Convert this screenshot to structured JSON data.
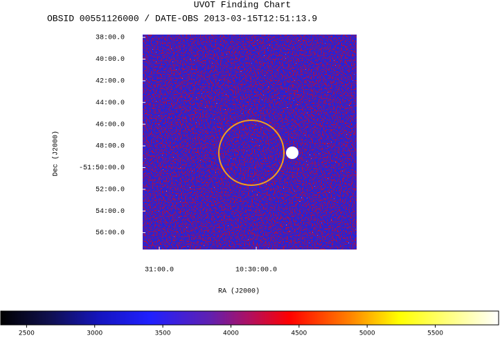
{
  "chart_data": {
    "type": "image",
    "title": "UVOT Finding Chart",
    "subtitle": "OBSID 00551126000 / DATE-OBS 2013-03-15T12:51:13.9",
    "xlabel": "RA (J2000)",
    "ylabel": "Dec (J2000)",
    "xlim": [
      157.7929,
      157.2411
    ],
    "xticks": [
      {
        "value": 157.75,
        "label": "31:00.0"
      },
      {
        "value": 157.5,
        "label": "10:30:00.0"
      }
    ],
    "ylim": [
      -51.9592,
      -51.629
    ],
    "yticks": [
      {
        "value": -51.6333,
        "label": "38:00.0"
      },
      {
        "value": -51.6667,
        "label": "40:00.0"
      },
      {
        "value": -51.7,
        "label": "42:00.0"
      },
      {
        "value": -51.7333,
        "label": "44:00.0"
      },
      {
        "value": -51.7667,
        "label": "46:00.0"
      },
      {
        "value": -51.8,
        "label": "48:00.0"
      },
      {
        "value": -51.8333,
        "label": "-51:50:00.0"
      },
      {
        "value": -51.8667,
        "label": "52:00.0"
      },
      {
        "value": -51.9,
        "label": "54:00.0"
      },
      {
        "value": -51.9333,
        "label": "56:00.0"
      }
    ],
    "grid": false,
    "colorbar": {
      "lim": [
        2310,
        5965
      ],
      "ticks": [
        2500,
        3000,
        3500,
        4000,
        4500,
        5000,
        5500
      ]
    }
  }
}
